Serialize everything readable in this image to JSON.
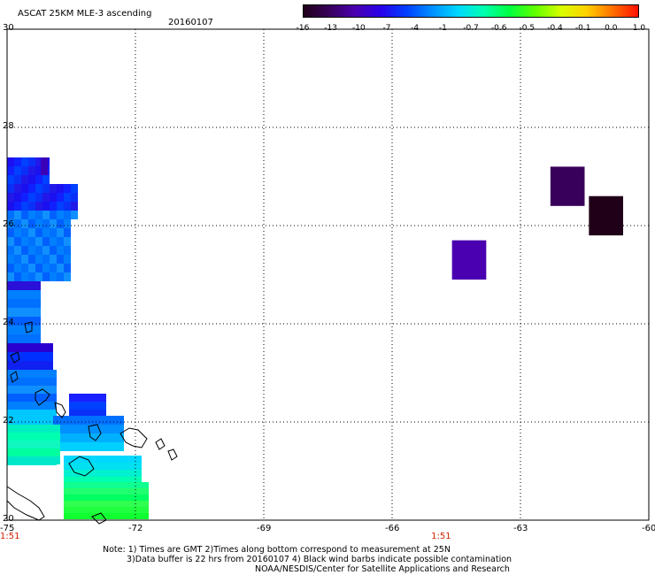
{
  "header": {
    "title": "ASCAT 25KM MLE-3 ascending",
    "date": "20160107"
  },
  "colorbar": {
    "labels": [
      "-16",
      "-13",
      "-10",
      "-7",
      "-4",
      "-1",
      "-0.7",
      "-0.6",
      "-0.5",
      "-0.4",
      "-0.1",
      "0.0",
      "1.0"
    ],
    "colors": [
      "#200018",
      "#38005a",
      "#4a00b0",
      "#2800e8",
      "#0040ff",
      "#0090ff",
      "#00d8ff",
      "#00ffb0",
      "#00ff40",
      "#60ff00",
      "#d8ff00",
      "#ffd000",
      "#ff7000",
      "#ff1000"
    ]
  },
  "axes": {
    "x_ticks": [
      "-75",
      "-72",
      "-69",
      "-66",
      "-63",
      "-60"
    ],
    "y_ticks": [
      "30",
      "28",
      "26",
      "24",
      "22",
      "20"
    ],
    "x_range": [
      -75,
      -60
    ],
    "y_range": [
      20,
      30
    ],
    "time_labels": [
      {
        "lon": -75,
        "text": "1:51"
      },
      {
        "lon": -64.9,
        "text": "1:51"
      }
    ]
  },
  "footer": {
    "line1": "Note: 1) Times are GMT 2)Times along bottom correspond to measurement at 25N",
    "line2": "3)Data buffer is 22 hrs from 20160107 4) Black wind barbs indicate possible contamination",
    "line3": "NOAA/NESDIS/Center for Satellite Applications and Research"
  },
  "data_patches": [
    {
      "lon0": -64.6,
      "lon1": -63.8,
      "lat0": 24.9,
      "lat1": 25.7,
      "color": "#4a00b0"
    },
    {
      "lon0": -62.3,
      "lon1": -61.5,
      "lat0": 26.4,
      "lat1": 27.2,
      "color": "#38005a"
    },
    {
      "lon0": -61.4,
      "lon1": -60.6,
      "lat0": 25.8,
      "lat1": 26.6,
      "color": "#200018"
    }
  ]
}
